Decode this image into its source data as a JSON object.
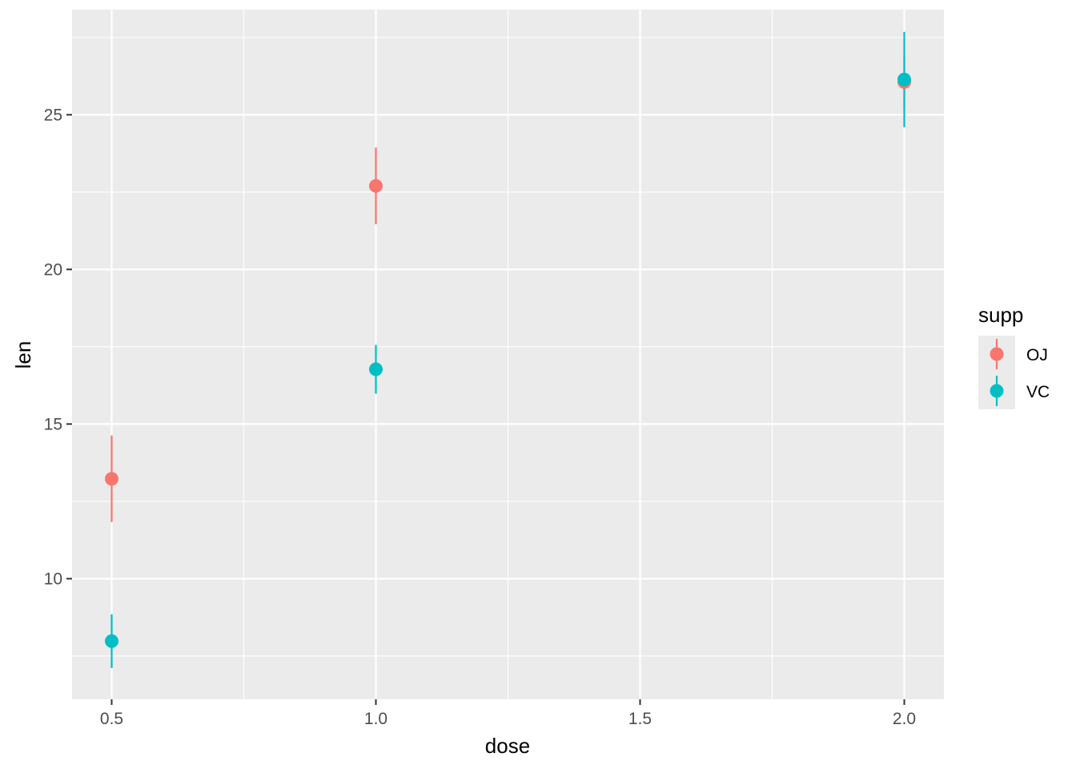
{
  "chart_data": {
    "type": "scatter",
    "xlabel": "dose",
    "ylabel": "len",
    "xlim": [
      0.425,
      2.075
    ],
    "ylim": [
      6.1,
      28.4
    ],
    "x_ticks": [
      0.5,
      1.0,
      1.5,
      2.0
    ],
    "x_tick_labels": [
      "0.5",
      "1.0",
      "1.5",
      "2.0"
    ],
    "y_ticks": [
      10,
      15,
      20,
      25
    ],
    "y_tick_labels": [
      "10",
      "15",
      "20",
      "25"
    ],
    "grid": true,
    "background": "#EBEBEB",
    "legend": {
      "title": "supp",
      "position": "right"
    },
    "series": [
      {
        "name": "OJ",
        "color": "#F8766D",
        "points": [
          {
            "x": 0.5,
            "y": 13.23,
            "ymin": 11.83,
            "ymax": 14.63
          },
          {
            "x": 1.0,
            "y": 22.7,
            "ymin": 21.46,
            "ymax": 23.94
          },
          {
            "x": 2.0,
            "y": 26.06,
            "ymin": 25.24,
            "ymax": 26.88
          }
        ]
      },
      {
        "name": "VC",
        "color": "#00BFC4",
        "points": [
          {
            "x": 0.5,
            "y": 7.98,
            "ymin": 7.11,
            "ymax": 8.85
          },
          {
            "x": 1.0,
            "y": 16.77,
            "ymin": 15.98,
            "ymax": 17.56
          },
          {
            "x": 2.0,
            "y": 26.14,
            "ymin": 24.6,
            "ymax": 27.68
          }
        ]
      }
    ]
  }
}
